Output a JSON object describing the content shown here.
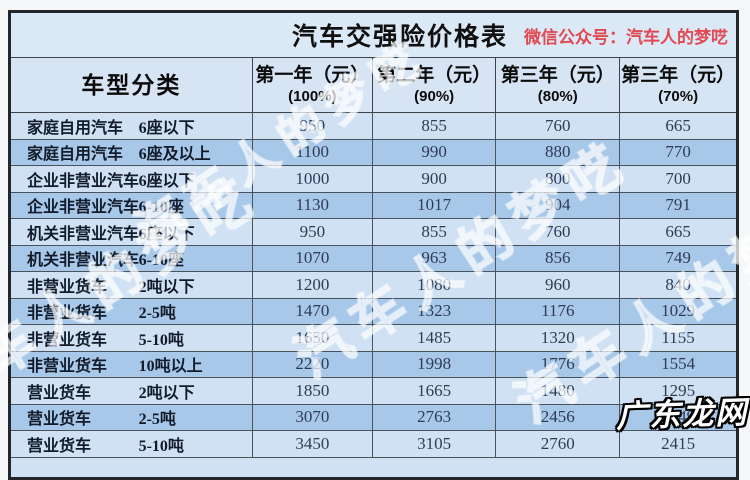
{
  "title": "汽车交强险价格表",
  "wechat_note": "微信公众号：汽车人的梦呓",
  "watermark": {
    "diagonal_text": "汽车人的梦呓",
    "stamp_text": "广东龙网"
  },
  "colors": {
    "accent_red": "#e14a52",
    "row_light": "#cfe1f3",
    "row_dark": "#a8c8e9",
    "header_bg": "#d6e4f4",
    "title_bg": "#dbe8f6",
    "border_dark": "#23262b",
    "text_dark": "#2e3c55"
  },
  "chart_data": {
    "type": "table",
    "title": "汽车交强险价格表",
    "subtitle": "微信公众号：汽车人的梦呓",
    "columns": [
      {
        "line1": "车型分类",
        "line2": ""
      },
      {
        "line1": "第一年（元）",
        "line2": "(100%)"
      },
      {
        "line1": "第二年（元）",
        "line2": "(90%)"
      },
      {
        "line1": "第三年（元）",
        "line2": "(80%)"
      },
      {
        "line1": "第三年（元）",
        "line2": "(70%)"
      }
    ],
    "rows": [
      {
        "type": "家庭自用汽车",
        "seat": "6座以下",
        "y1": "950",
        "y2": "855",
        "y3": "760",
        "y4": "665"
      },
      {
        "type": "家庭自用汽车",
        "seat": "6座及以上",
        "y1": "1100",
        "y2": "990",
        "y3": "880",
        "y4": "770"
      },
      {
        "type": "企业非营业汽车",
        "seat": "6座以下",
        "y1": "1000",
        "y2": "900",
        "y3": "800",
        "y4": "700"
      },
      {
        "type": "企业非营业汽车",
        "seat": "6-10座",
        "y1": "1130",
        "y2": "1017",
        "y3": "904",
        "y4": "791"
      },
      {
        "type": "机关非营业汽车",
        "seat": "6座以下",
        "y1": "950",
        "y2": "855",
        "y3": "760",
        "y4": "665"
      },
      {
        "type": "机关非营业汽车",
        "seat": "6-10座",
        "y1": "1070",
        "y2": "963",
        "y3": "856",
        "y4": "749"
      },
      {
        "type": "非营业货车",
        "seat": "2吨以下",
        "y1": "1200",
        "y2": "1080",
        "y3": "960",
        "y4": "840"
      },
      {
        "type": "非营业货车",
        "seat": "2-5吨",
        "y1": "1470",
        "y2": "1323",
        "y3": "1176",
        "y4": "1029"
      },
      {
        "type": "非营业货车",
        "seat": "5-10吨",
        "y1": "1650",
        "y2": "1485",
        "y3": "1320",
        "y4": "1155"
      },
      {
        "type": "非营业货车",
        "seat": "10吨以上",
        "y1": "2220",
        "y2": "1998",
        "y3": "1776",
        "y4": "1554"
      },
      {
        "type": "营业货车",
        "seat": "2吨以下",
        "y1": "1850",
        "y2": "1665",
        "y3": "1480",
        "y4": "1295"
      },
      {
        "type": "营业货车",
        "seat": "2-5吨",
        "y1": "3070",
        "y2": "2763",
        "y3": "2456",
        "y4": "2149"
      },
      {
        "type": "营业货车",
        "seat": "5-10吨",
        "y1": "3450",
        "y2": "3105",
        "y3": "2760",
        "y4": "2415"
      }
    ]
  }
}
